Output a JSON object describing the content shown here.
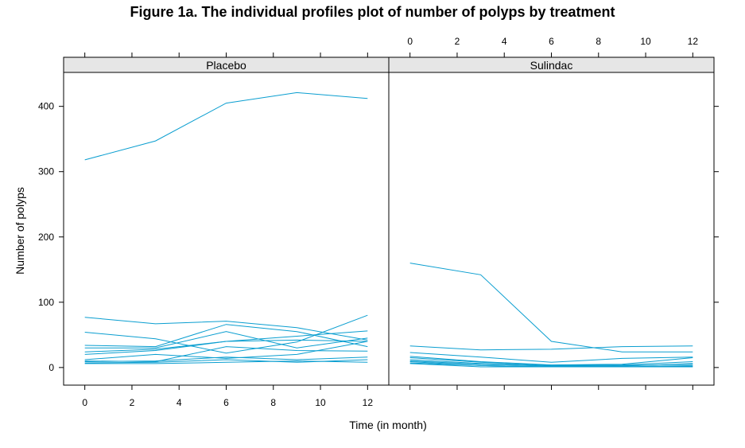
{
  "chart_data": {
    "type": "line",
    "title": "Figure 1a. The individual profiles plot of number of polyps by treatment",
    "xlabel": "Time (in month)",
    "ylabel": "Number of polyps",
    "xlim": [
      -0.9,
      12.9
    ],
    "ylim": [
      -27,
      452
    ],
    "xticks": [
      0,
      2,
      4,
      6,
      8,
      10,
      12
    ],
    "yticks": [
      0,
      100,
      200,
      300,
      400
    ],
    "grid": false,
    "line_color": "#0a9ed0",
    "panels": [
      {
        "name": "Placebo",
        "x": [
          0,
          3,
          6,
          9,
          12
        ],
        "series": [
          {
            "values": [
              318,
              347,
              405,
              421,
              412
            ]
          },
          {
            "values": [
              77,
              67,
              71,
              61,
              42
            ]
          },
          {
            "values": [
              54,
              44,
              22,
              39,
              80
            ]
          },
          {
            "values": [
              34,
              32,
              66,
              55,
              32
            ]
          },
          {
            "values": [
              30,
              30,
              55,
              30,
              45
            ]
          },
          {
            "values": [
              24,
              28,
              40,
              48,
              56
            ]
          },
          {
            "values": [
              20,
              26,
              40,
              42,
              40
            ]
          },
          {
            "values": [
              12,
              20,
              14,
              20,
              40
            ]
          },
          {
            "values": [
              10,
              9,
              32,
              26,
              25
            ]
          },
          {
            "values": [
              9,
              10,
              16,
              12,
              16
            ]
          },
          {
            "values": [
              7,
              8,
              12,
              8,
              12
            ]
          },
          {
            "values": [
              6,
              6,
              8,
              10,
              8
            ]
          }
        ]
      },
      {
        "name": "Sulindac",
        "x": [
          0,
          3,
          6,
          9,
          12
        ],
        "series": [
          {
            "values": [
              160,
              142,
              40,
              24,
              24
            ]
          },
          {
            "values": [
              33,
              27,
              28,
              32,
              33
            ]
          },
          {
            "values": [
              23,
              16,
              8,
              14,
              16
            ]
          },
          {
            "values": [
              17,
              9,
              4,
              5,
              15
            ]
          },
          {
            "values": [
              15,
              8,
              3,
              4,
              9
            ]
          },
          {
            "values": [
              12,
              6,
              2,
              2,
              6
            ]
          },
          {
            "values": [
              10,
              5,
              2,
              3,
              5
            ]
          },
          {
            "values": [
              9,
              3,
              1,
              1,
              3
            ]
          },
          {
            "values": [
              7,
              3,
              1,
              1,
              2
            ]
          },
          {
            "values": [
              6,
              1,
              1,
              1,
              1
            ]
          }
        ]
      }
    ]
  }
}
